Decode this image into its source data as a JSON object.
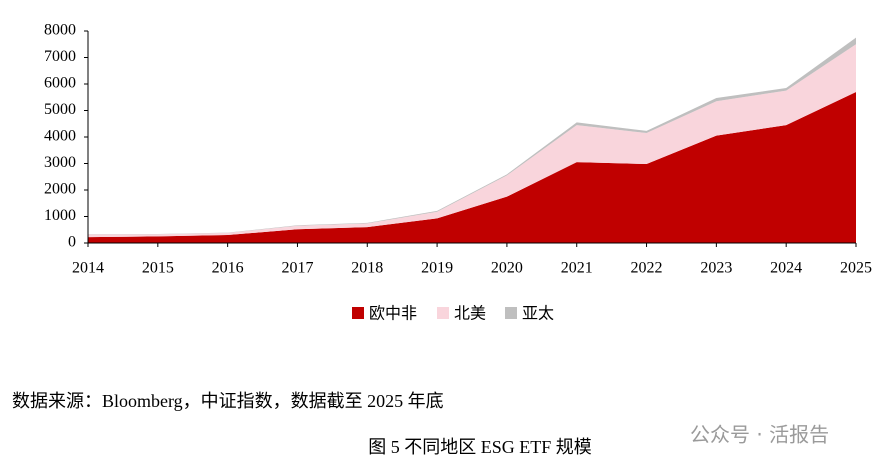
{
  "chart_data": {
    "type": "stacked_area",
    "x": [
      2014,
      2015,
      2016,
      2017,
      2018,
      2019,
      2020,
      2021,
      2022,
      2023,
      2024,
      2025
    ],
    "series": [
      {
        "name": "欧中非",
        "color": "#c00000",
        "values": [
          220,
          250,
          300,
          520,
          600,
          930,
          1750,
          3050,
          2980,
          4050,
          4450,
          5700
        ]
      },
      {
        "name": "北美",
        "color": "#f9d5dc",
        "values": [
          100,
          80,
          80,
          130,
          140,
          250,
          800,
          1400,
          1170,
          1300,
          1300,
          1800
        ]
      },
      {
        "name": "亚太",
        "color": "#bfbfbf",
        "values": [
          10,
          10,
          10,
          20,
          20,
          30,
          40,
          100,
          80,
          120,
          100,
          250
        ]
      }
    ],
    "xlim": [
      2014,
      2025
    ],
    "xticks": [
      2014,
      2015,
      2016,
      2017,
      2018,
      2019,
      2020,
      2021,
      2022,
      2023,
      2024,
      2025
    ],
    "ylim": [
      0,
      8000
    ],
    "yticks": [
      0,
      1000,
      2000,
      3000,
      4000,
      5000,
      6000,
      7000,
      8000
    ],
    "legend": "bottom"
  },
  "source": "数据来源：Bloomberg，中证指数，数据截至 2025 年底",
  "caption": "图 5  不同地区 ESG ETF 规模",
  "watermark": "公众号 · 活报告"
}
